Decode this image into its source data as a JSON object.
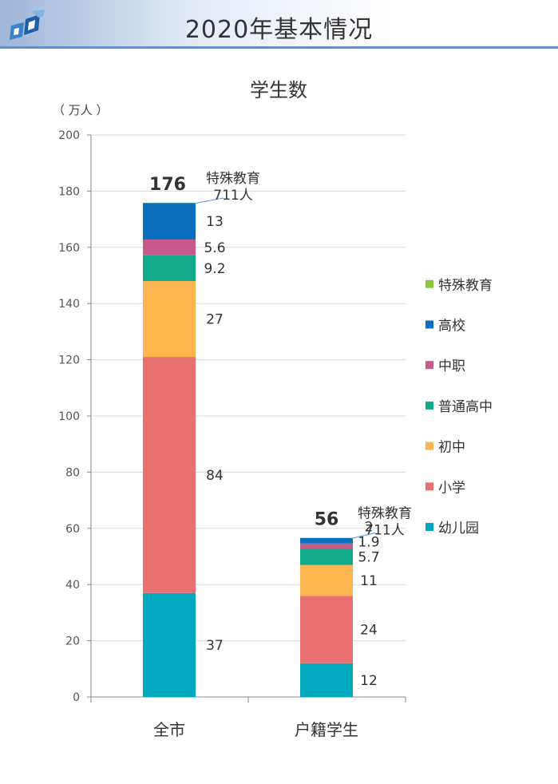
{
  "page_title": "2020年基本情况",
  "colors": {
    "header_line": "#6a8fc4",
    "text": "#333333"
  },
  "chart_data": {
    "type": "bar",
    "stacked": true,
    "title": "学生数",
    "ylabel": "（ 万人 ）",
    "xlabel": "",
    "ylim": [
      0,
      200
    ],
    "y_ticks": [
      0,
      20,
      40,
      60,
      80,
      100,
      120,
      140,
      160,
      180,
      200
    ],
    "grid": true,
    "legend_position": "right",
    "categories": [
      "全市",
      "户籍学生"
    ],
    "totals": [
      "176",
      "56"
    ],
    "series": [
      {
        "name": "幼儿园",
        "color": "#00a9be",
        "values": [
          37,
          12
        ],
        "labels": [
          "37",
          "12"
        ]
      },
      {
        "name": "小学",
        "color": "#e87070",
        "values": [
          84,
          24
        ],
        "labels": [
          "84",
          "24"
        ]
      },
      {
        "name": "初中",
        "color": "#fdb64f",
        "values": [
          27,
          11
        ],
        "labels": [
          "27",
          "11"
        ]
      },
      {
        "name": "普通高中",
        "color": "#10a98a",
        "values": [
          9.2,
          5.7
        ],
        "labels": [
          "9.2",
          "5.7"
        ]
      },
      {
        "name": "中职",
        "color": "#c85a8a",
        "values": [
          5.6,
          1.9
        ],
        "labels": [
          "5.6",
          "1.9"
        ]
      },
      {
        "name": "高校",
        "color": "#0a6ebd",
        "values": [
          13,
          2
        ],
        "labels": [
          "13",
          "2"
        ]
      },
      {
        "name": "特殊教育",
        "color": "#8cc83c",
        "values": [
          0.0711,
          0.0711
        ],
        "labels": [
          "",
          ""
        ]
      }
    ],
    "annotations": [
      {
        "category": "全市",
        "line1": "特殊教育",
        "line2": "711人"
      },
      {
        "category": "户籍学生",
        "line1": "特殊教育",
        "line2": "711人"
      }
    ]
  }
}
